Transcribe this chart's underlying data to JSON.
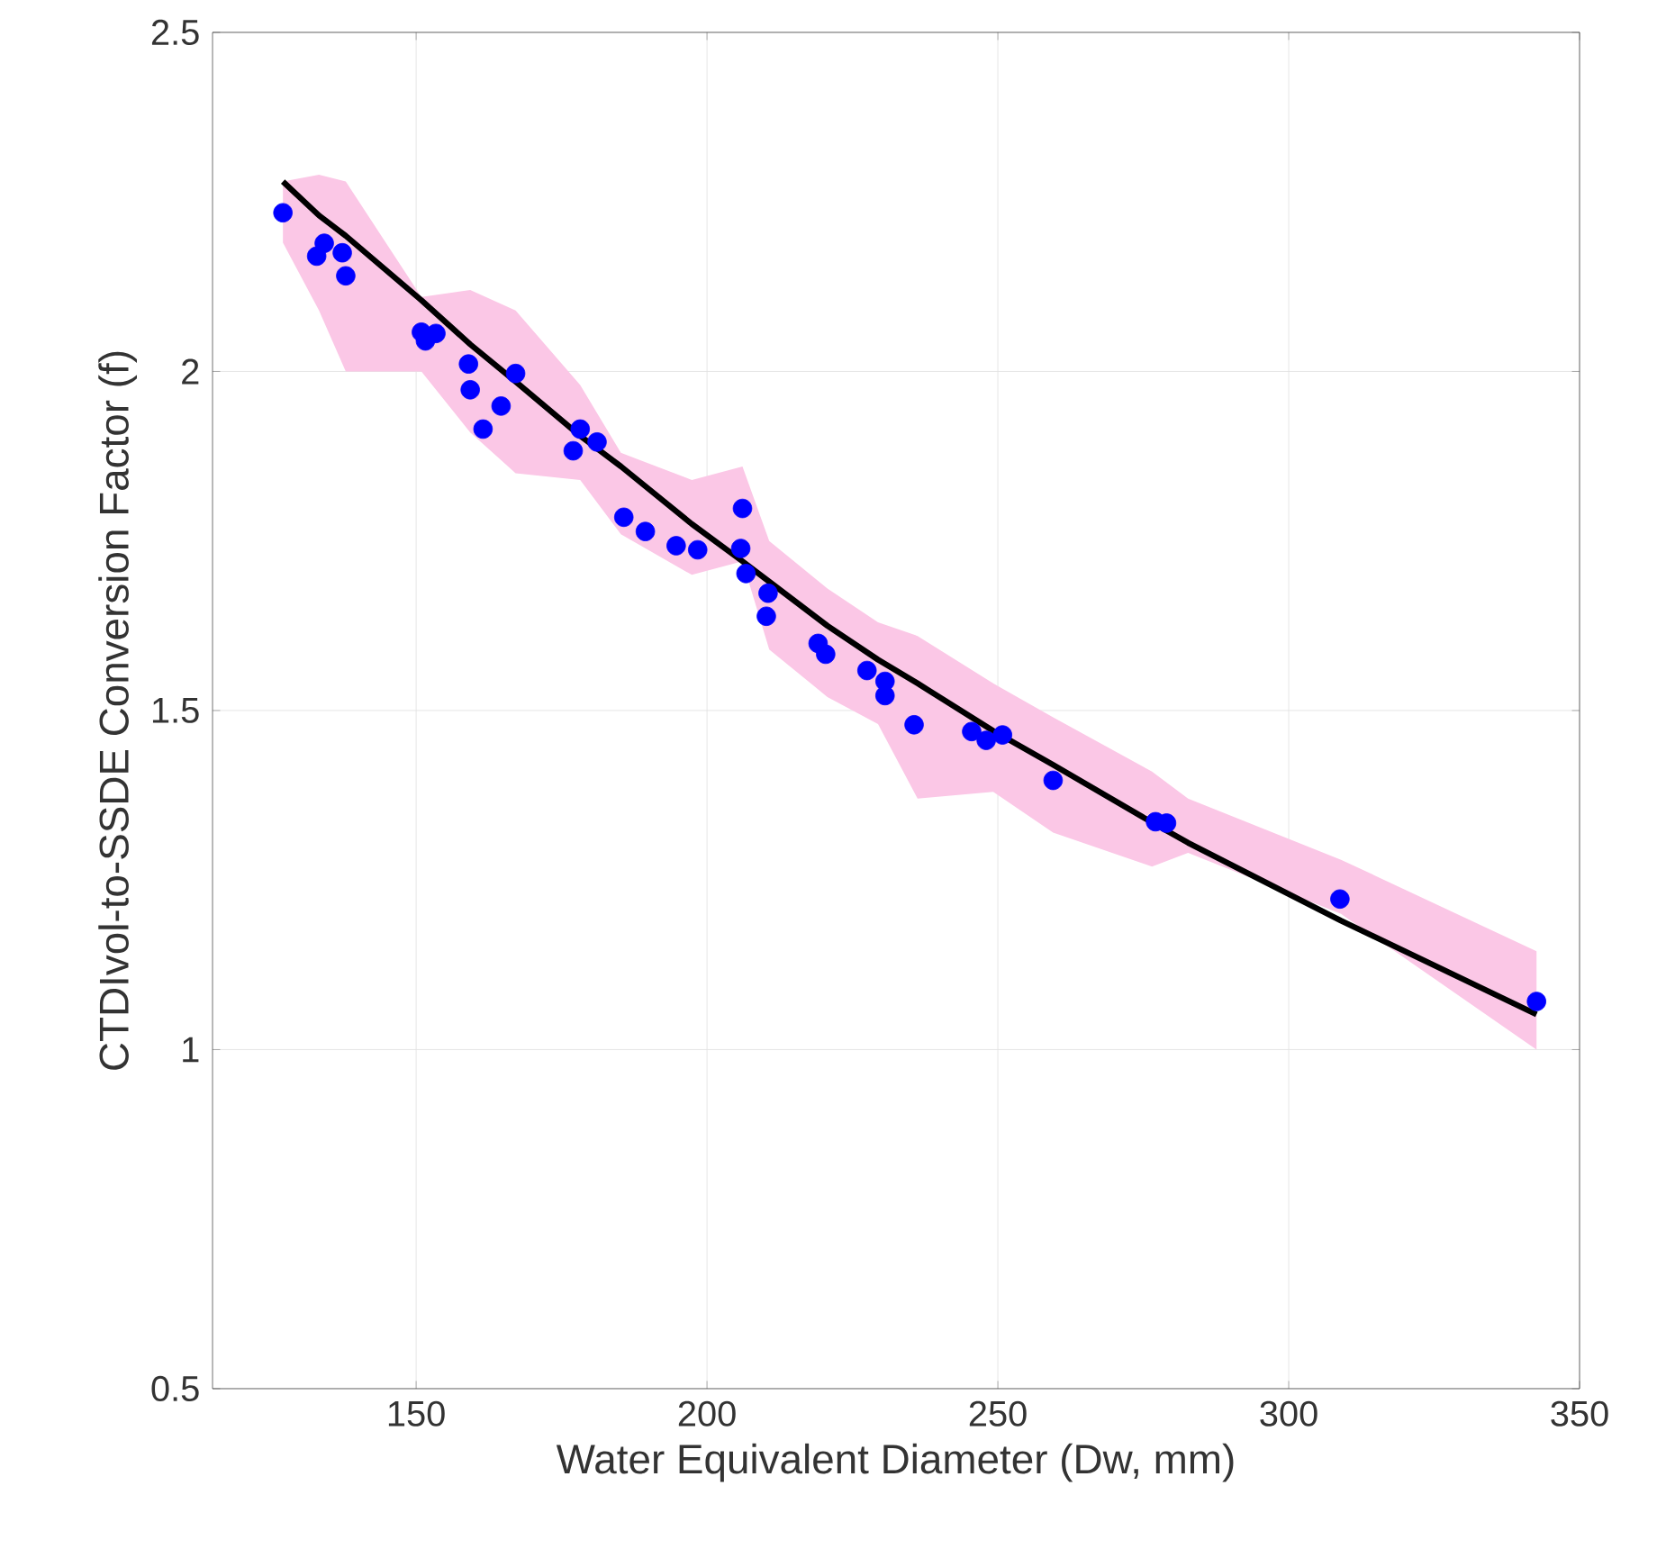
{
  "chart_data": {
    "type": "scatter",
    "xlabel": "Water Equivalent Diameter (Dw, mm)",
    "ylabel": "CTDIvol-to-SSDE Conversion Factor (f)",
    "xlim": [
      115,
      350
    ],
    "ylim": [
      0.5,
      2.5
    ],
    "xticks": [
      150,
      200,
      250,
      300,
      350
    ],
    "yticks": [
      0.5,
      1,
      1.5,
      2,
      2.5
    ],
    "grid": true,
    "series": [
      {
        "type": "line",
        "color": "#000000",
        "line_style": "solid",
        "marker": "none",
        "x": [
          127.1,
          133.3,
          137.9,
          150.9,
          159.3,
          167.1,
          178.2,
          185.2,
          197.4,
          206.1,
          210.7,
          220.7,
          229.4,
          236.2,
          249.2,
          259.5,
          276.5,
          282.7,
          309.0,
          342.6
        ],
        "values": [
          2.28,
          2.23,
          2.2,
          2.105,
          2.04,
          1.985,
          1.905,
          1.86,
          1.775,
          1.72,
          1.69,
          1.625,
          1.575,
          1.54,
          1.47,
          1.42,
          1.335,
          1.305,
          1.19,
          1.052
        ],
        "upper": [
          2.28,
          2.29,
          2.28,
          2.11,
          2.12,
          2.09,
          1.98,
          1.88,
          1.84,
          1.86,
          1.75,
          1.68,
          1.63,
          1.61,
          1.54,
          1.49,
          1.41,
          1.37,
          1.28,
          1.145
        ],
        "lower": [
          2.19,
          2.09,
          2.0,
          2.0,
          1.91,
          1.85,
          1.84,
          1.76,
          1.7,
          1.72,
          1.59,
          1.52,
          1.48,
          1.37,
          1.38,
          1.32,
          1.27,
          1.29,
          1.2,
          1.0
        ]
      },
      {
        "color": "#0000ff",
        "marker": "circle",
        "x": [
          127.1,
          133.3,
          134.2,
          132.9,
          137.3,
          137.9,
          150.9,
          153.4,
          151.6,
          159.0,
          167.1,
          159.3,
          164.6,
          161.5,
          178.2,
          181.1,
          177.0,
          185.7,
          189.4,
          194.7,
          198.4,
          206.1,
          205.8,
          206.7,
          210.5,
          210.2,
          219.1,
          220.4,
          227.5,
          230.6,
          230.6,
          235.6,
          245.5,
          248.0,
          250.8,
          259.5,
          277.1,
          279.0,
          308.8,
          342.6
        ],
        "values": [
          2.234,
          null,
          2.189,
          2.17,
          2.175,
          2.141,
          2.058,
          2.056,
          2.045,
          2.011,
          1.997,
          1.973,
          1.949,
          1.915,
          1.915,
          1.896,
          1.883,
          1.785,
          1.764,
          1.743,
          1.737,
          1.798,
          1.739,
          1.702,
          1.673,
          1.639,
          1.599,
          1.583,
          1.559,
          1.543,
          1.522,
          1.479,
          1.469,
          1.456,
          1.464,
          1.397,
          1.336,
          1.334,
          1.222,
          1.071
        ]
      }
    ]
  }
}
